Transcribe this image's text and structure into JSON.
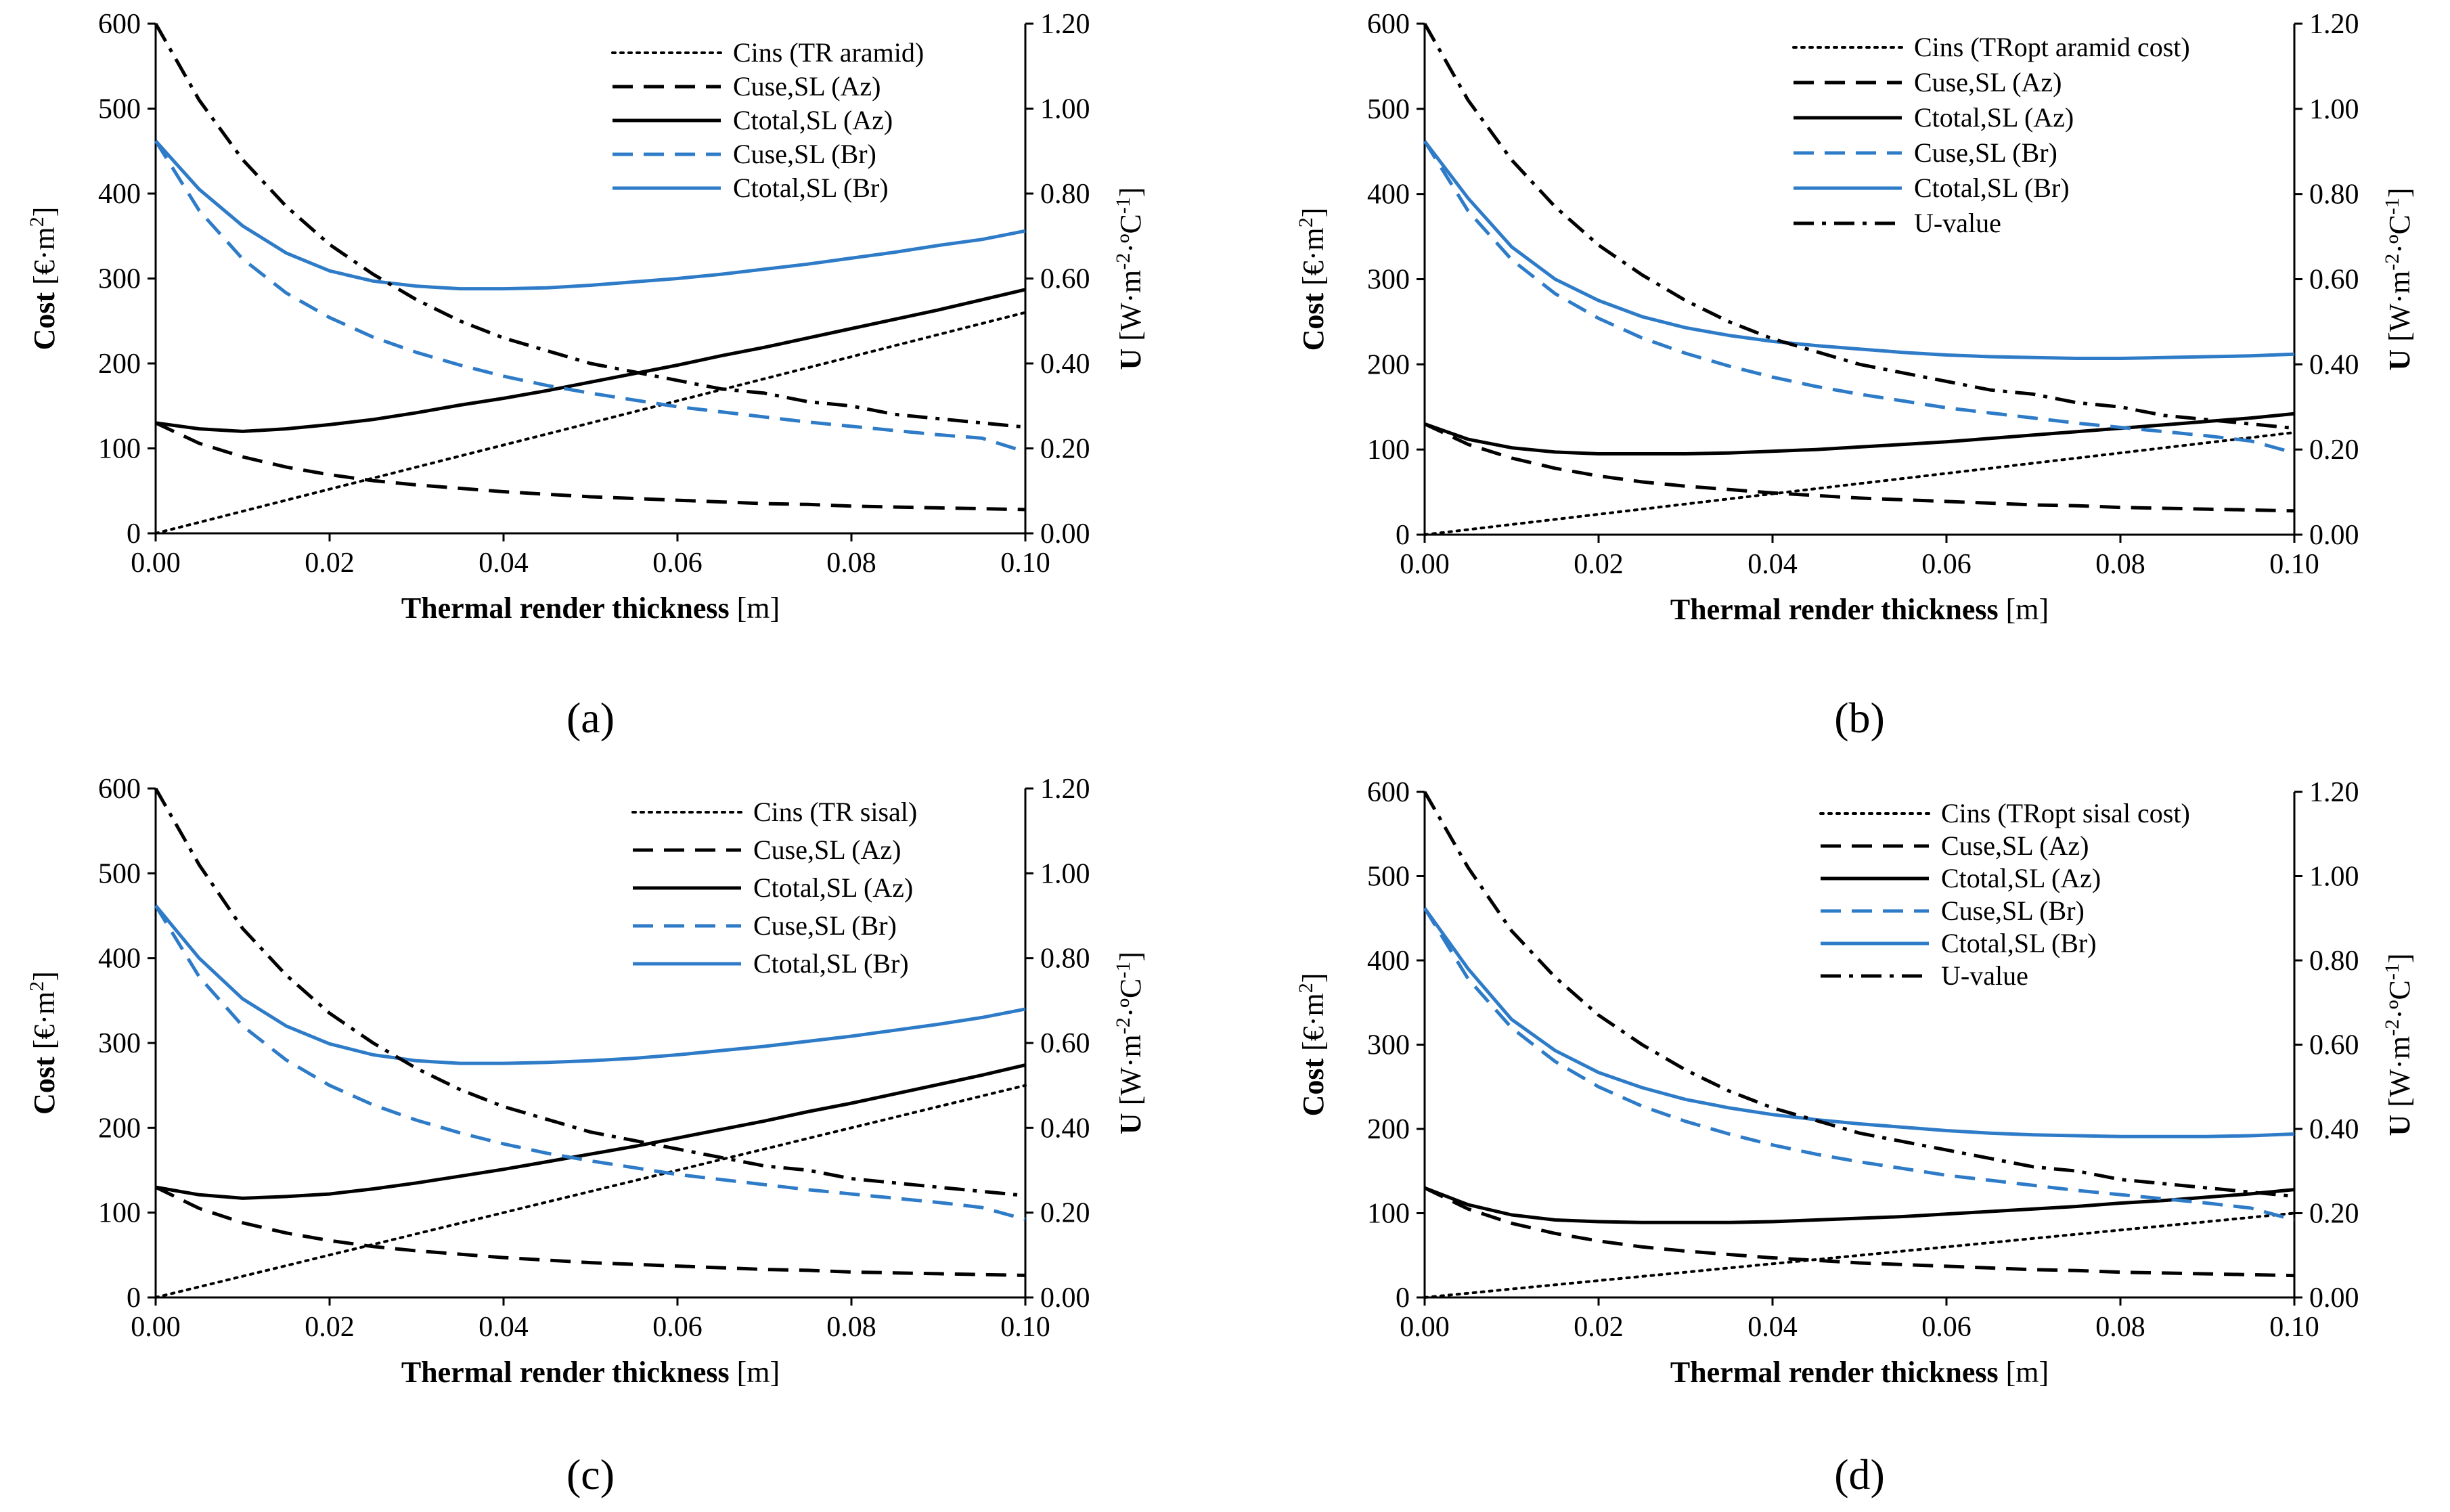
{
  "figure": {
    "colors": {
      "black": "#000000",
      "blue": "#2E7BC8"
    },
    "x_axis_label": {
      "bold": "Thermal render thickness",
      "unit": " [m]"
    },
    "y_axis_label": {
      "bold": "Cost",
      "unit": " [€·m",
      "sup": "2",
      "close": "]"
    },
    "y2_axis_label": {
      "bold": "U",
      "unit": " [W·m",
      "sup": "-2",
      "mid": "·ºC",
      "sup2": "-1",
      "close": "]"
    },
    "x_ticks": [
      "0.00",
      "0.02",
      "0.04",
      "0.06",
      "0.08",
      "0.10"
    ],
    "y_ticks": [
      "0",
      "100",
      "200",
      "300",
      "400",
      "500",
      "600"
    ],
    "y2_ticks": [
      "0.00",
      "0.20",
      "0.40",
      "0.60",
      "0.80",
      "1.00",
      "1.20"
    ]
  },
  "chart_data": [
    {
      "type": "line",
      "panel_label": "(a)",
      "xlabel": "Thermal render thickness [m]",
      "ylabel": "Cost [€·m2]",
      "y2label": "U [W·m-2·ºC-1]",
      "xlim": [
        0,
        0.1
      ],
      "ylim": [
        0,
        600
      ],
      "y2lim": [
        0,
        1.2
      ],
      "x": [
        0,
        0.005,
        0.01,
        0.015,
        0.02,
        0.025,
        0.03,
        0.035,
        0.04,
        0.045,
        0.05,
        0.055,
        0.06,
        0.065,
        0.07,
        0.075,
        0.08,
        0.085,
        0.09,
        0.095,
        0.1
      ],
      "series": [
        {
          "name": "Cins (TR aramid)",
          "style": "dotted",
          "color": "#000000",
          "axis": "left",
          "values": [
            0,
            13,
            26,
            39,
            52,
            65,
            78,
            91,
            104,
            117,
            130,
            143,
            156,
            169,
            182,
            195,
            208,
            221,
            234,
            247,
            260
          ]
        },
        {
          "name": "Cuse,SL (Az)",
          "style": "dashed",
          "color": "#000000",
          "axis": "left",
          "values": [
            130,
            106,
            90,
            78,
            69,
            62,
            57,
            53,
            49,
            46,
            43,
            41,
            39,
            37,
            35,
            34,
            32,
            31,
            30,
            29,
            28
          ]
        },
        {
          "name": "Ctotal,SL (Az)",
          "style": "solid",
          "color": "#000000",
          "axis": "left",
          "values": [
            130,
            123,
            120,
            123,
            128,
            134,
            142,
            151,
            159,
            168,
            178,
            188,
            198,
            209,
            219,
            230,
            241,
            252,
            263,
            275,
            287
          ]
        },
        {
          "name": "Cuse,SL (Br)",
          "style": "dashed",
          "color": "#2E7BC8",
          "axis": "left",
          "values": [
            462,
            380,
            323,
            283,
            254,
            231,
            213,
            198,
            185,
            174,
            165,
            157,
            149,
            143,
            137,
            131,
            126,
            121,
            116,
            112,
            96
          ]
        },
        {
          "name": "Ctotal,SL (Br)",
          "style": "solid",
          "color": "#2E7BC8",
          "axis": "left",
          "values": [
            462,
            405,
            362,
            330,
            309,
            297,
            291,
            288,
            288,
            289,
            292,
            296,
            300,
            305,
            311,
            317,
            324,
            331,
            339,
            346,
            356
          ]
        },
        {
          "name": "U-value",
          "style": "dashdot",
          "color": "#000000",
          "axis": "right",
          "in_legend": false,
          "values": [
            1.2,
            1.02,
            0.88,
            0.77,
            0.68,
            0.61,
            0.55,
            0.5,
            0.46,
            0.43,
            0.4,
            0.38,
            0.36,
            0.34,
            0.33,
            0.31,
            0.3,
            0.28,
            0.27,
            0.26,
            0.25
          ]
        }
      ]
    },
    {
      "type": "line",
      "panel_label": "(b)",
      "xlabel": "Thermal render thickness [m]",
      "ylabel": "Cost [€·m2]",
      "y2label": "U [W·m-2·ºC-1]",
      "xlim": [
        0,
        0.1
      ],
      "ylim": [
        0,
        600
      ],
      "y2lim": [
        0,
        1.2
      ],
      "x": [
        0,
        0.005,
        0.01,
        0.015,
        0.02,
        0.025,
        0.03,
        0.035,
        0.04,
        0.045,
        0.05,
        0.055,
        0.06,
        0.065,
        0.07,
        0.075,
        0.08,
        0.085,
        0.09,
        0.095,
        0.1
      ],
      "series": [
        {
          "name": "Cins (TRopt aramid cost)",
          "style": "dotted",
          "color": "#000000",
          "axis": "left",
          "values": [
            0,
            6,
            12,
            18,
            24,
            30,
            36,
            42,
            48,
            54,
            60,
            66,
            72,
            78,
            84,
            90,
            96,
            102,
            108,
            114,
            120
          ]
        },
        {
          "name": "Cuse,SL (Az)",
          "style": "dashed",
          "color": "#000000",
          "axis": "left",
          "values": [
            130,
            106,
            90,
            78,
            69,
            62,
            57,
            53,
            49,
            46,
            43,
            41,
            39,
            37,
            35,
            34,
            32,
            31,
            30,
            29,
            28
          ]
        },
        {
          "name": "Ctotal,SL (Az)",
          "style": "solid",
          "color": "#000000",
          "axis": "left",
          "values": [
            130,
            112,
            102,
            97,
            95,
            95,
            95,
            96,
            98,
            100,
            103,
            106,
            109,
            113,
            117,
            121,
            125,
            129,
            133,
            137,
            142
          ]
        },
        {
          "name": "Cuse,SL (Br)",
          "style": "dashed",
          "color": "#2E7BC8",
          "axis": "left",
          "values": [
            462,
            380,
            323,
            283,
            254,
            231,
            213,
            198,
            185,
            174,
            165,
            157,
            149,
            143,
            137,
            131,
            126,
            121,
            116,
            110,
            96
          ]
        },
        {
          "name": "Ctotal,SL (Br)",
          "style": "solid",
          "color": "#2E7BC8",
          "axis": "left",
          "values": [
            462,
            395,
            338,
            300,
            275,
            256,
            243,
            234,
            227,
            222,
            218,
            214,
            211,
            209,
            208,
            207,
            207,
            208,
            209,
            210,
            212
          ]
        },
        {
          "name": "U-value",
          "style": "dashdot",
          "color": "#000000",
          "axis": "right",
          "values": [
            1.2,
            1.02,
            0.88,
            0.77,
            0.68,
            0.61,
            0.55,
            0.5,
            0.46,
            0.43,
            0.4,
            0.38,
            0.36,
            0.34,
            0.33,
            0.31,
            0.3,
            0.28,
            0.27,
            0.26,
            0.25
          ]
        }
      ]
    },
    {
      "type": "line",
      "panel_label": "(c)",
      "xlabel": "Thermal render thickness [m]",
      "ylabel": "Cost [€·m2]",
      "y2label": "U [W·m-2·ºC-1]",
      "xlim": [
        0,
        0.1
      ],
      "ylim": [
        0,
        600
      ],
      "y2lim": [
        0,
        1.2
      ],
      "x": [
        0,
        0.005,
        0.01,
        0.015,
        0.02,
        0.025,
        0.03,
        0.035,
        0.04,
        0.045,
        0.05,
        0.055,
        0.06,
        0.065,
        0.07,
        0.075,
        0.08,
        0.085,
        0.09,
        0.095,
        0.1
      ],
      "series": [
        {
          "name": "Cins (TR sisal)",
          "style": "dotted",
          "color": "#000000",
          "axis": "left",
          "values": [
            0,
            12.5,
            25,
            37.5,
            50,
            62.5,
            75,
            87.5,
            100,
            112.5,
            125,
            137.5,
            150,
            162.5,
            175,
            187.5,
            200,
            212.5,
            225,
            237.5,
            250
          ]
        },
        {
          "name": "Cuse,SL (Az)",
          "style": "dashed",
          "color": "#000000",
          "axis": "left",
          "values": [
            130,
            105,
            88,
            76,
            67,
            60,
            55,
            51,
            47,
            44,
            41,
            39,
            37,
            35,
            33,
            32,
            30,
            29,
            28,
            27,
            26
          ]
        },
        {
          "name": "Ctotal,SL (Az)",
          "style": "solid",
          "color": "#000000",
          "axis": "left",
          "values": [
            130,
            121,
            117,
            119,
            122,
            128,
            135,
            143,
            151,
            160,
            169,
            178,
            188,
            198,
            208,
            219,
            229,
            240,
            251,
            262,
            274
          ]
        },
        {
          "name": "Cuse,SL (Br)",
          "style": "dashed",
          "color": "#2E7BC8",
          "axis": "left",
          "values": [
            462,
            378,
            320,
            280,
            250,
            227,
            209,
            194,
            181,
            170,
            161,
            153,
            145,
            139,
            133,
            127,
            122,
            117,
            112,
            106,
            92
          ]
        },
        {
          "name": "Ctotal,SL (Br)",
          "style": "solid",
          "color": "#2E7BC8",
          "axis": "left",
          "values": [
            462,
            400,
            352,
            320,
            299,
            286,
            279,
            276,
            276,
            277,
            279,
            282,
            286,
            291,
            296,
            302,
            308,
            315,
            322,
            330,
            340
          ]
        },
        {
          "name": "U-value",
          "style": "dashdot",
          "color": "#000000",
          "axis": "right",
          "in_legend": false,
          "values": [
            1.2,
            1.02,
            0.87,
            0.76,
            0.67,
            0.6,
            0.54,
            0.49,
            0.45,
            0.42,
            0.39,
            0.37,
            0.35,
            0.33,
            0.31,
            0.3,
            0.28,
            0.27,
            0.26,
            0.25,
            0.24
          ]
        }
      ]
    },
    {
      "type": "line",
      "panel_label": "(d)",
      "xlabel": "Thermal render thickness [m]",
      "ylabel": "Cost [€·m2]",
      "y2label": "U [W·m-2·ºC-1]",
      "xlim": [
        0,
        0.1
      ],
      "ylim": [
        0,
        600
      ],
      "y2lim": [
        0,
        1.2
      ],
      "x": [
        0,
        0.005,
        0.01,
        0.015,
        0.02,
        0.025,
        0.03,
        0.035,
        0.04,
        0.045,
        0.05,
        0.055,
        0.06,
        0.065,
        0.07,
        0.075,
        0.08,
        0.085,
        0.09,
        0.095,
        0.1
      ],
      "series": [
        {
          "name": "Cins (TRopt sisal cost)",
          "style": "dotted",
          "color": "#000000",
          "axis": "left",
          "values": [
            0,
            5,
            10,
            15,
            20,
            25,
            30,
            35,
            40,
            45,
            50,
            55,
            60,
            65,
            70,
            75,
            80,
            85,
            90,
            95,
            100
          ]
        },
        {
          "name": "Cuse,SL (Az)",
          "style": "dashed",
          "color": "#000000",
          "axis": "left",
          "values": [
            130,
            105,
            88,
            76,
            67,
            60,
            55,
            51,
            47,
            44,
            41,
            39,
            37,
            35,
            33,
            32,
            30,
            29,
            28,
            27,
            26
          ]
        },
        {
          "name": "Ctotal,SL (Az)",
          "style": "solid",
          "color": "#000000",
          "axis": "left",
          "values": [
            130,
            110,
            98,
            92,
            90,
            89,
            89,
            89,
            90,
            92,
            94,
            96,
            99,
            102,
            105,
            108,
            112,
            115,
            119,
            123,
            128
          ]
        },
        {
          "name": "Cuse,SL (Br)",
          "style": "dashed",
          "color": "#2E7BC8",
          "axis": "left",
          "values": [
            462,
            378,
            320,
            280,
            250,
            227,
            209,
            194,
            181,
            170,
            161,
            153,
            145,
            139,
            133,
            127,
            122,
            117,
            112,
            106,
            92
          ]
        },
        {
          "name": "Ctotal,SL (Br)",
          "style": "solid",
          "color": "#2E7BC8",
          "axis": "left",
          "values": [
            462,
            390,
            330,
            293,
            267,
            249,
            235,
            225,
            217,
            211,
            206,
            202,
            198,
            195,
            193,
            192,
            191,
            191,
            191,
            192,
            194
          ]
        },
        {
          "name": "U-value",
          "style": "dashdot",
          "color": "#000000",
          "axis": "right",
          "values": [
            1.2,
            1.02,
            0.87,
            0.76,
            0.67,
            0.6,
            0.54,
            0.49,
            0.45,
            0.42,
            0.39,
            0.37,
            0.35,
            0.33,
            0.31,
            0.3,
            0.28,
            0.27,
            0.26,
            0.25,
            0.24
          ]
        }
      ]
    }
  ]
}
